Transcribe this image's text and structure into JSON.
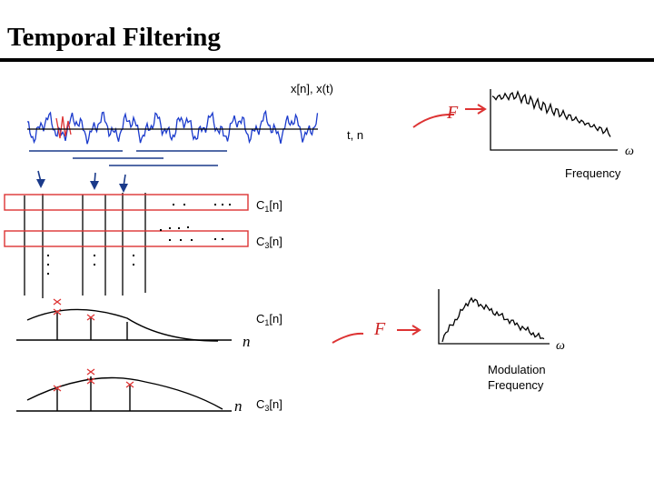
{
  "header": {
    "title": "Temporal Filtering"
  },
  "top_figure": {
    "signal_label": "x[n], x(t)",
    "time_axis": "t, n",
    "transform": "F",
    "freq_symbol": "ω",
    "freq_label": "Frequency"
  },
  "rows": [
    {
      "base": "C",
      "sub": "1",
      "rest": "[n]"
    },
    {
      "base": "C",
      "sub": "3",
      "rest": "[n]"
    }
  ],
  "bottom_figure": {
    "curves": [
      {
        "base": "C",
        "sub": "1",
        "rest": "[n]",
        "axis": "n"
      },
      {
        "base": "C",
        "sub": "3",
        "rest": "[n]",
        "axis": "n"
      }
    ],
    "transform": "F",
    "freq_symbol": "ω",
    "freq_label": [
      "Modulation",
      "Frequency"
    ]
  }
}
